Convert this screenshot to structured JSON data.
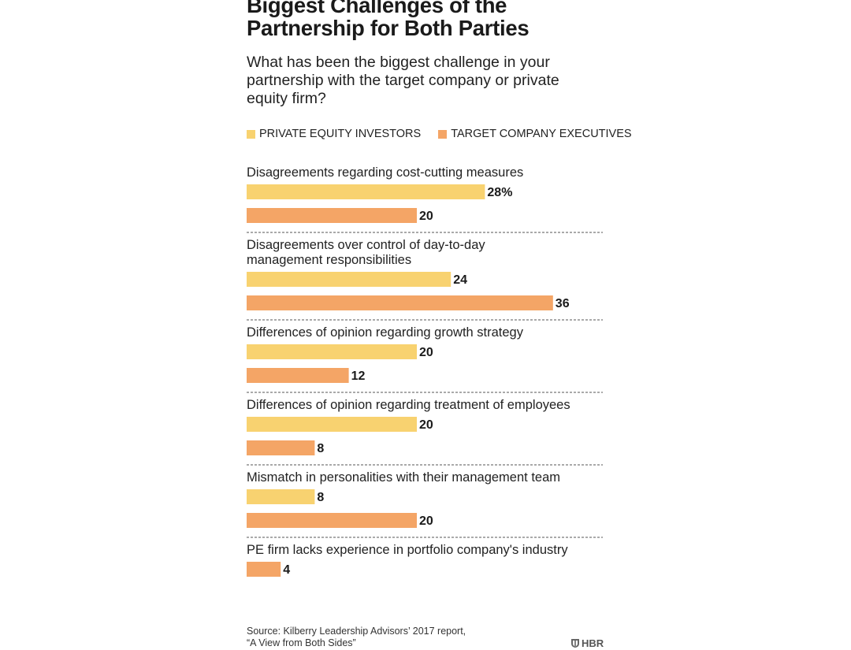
{
  "chart_data": {
    "type": "bar",
    "orientation": "horizontal",
    "title": "Biggest Challenges of the\nPartnership for Both Parties",
    "subtitle": "What has been the biggest challenge in your partnership with the target company or private equity firm?",
    "unit_suffix_first": "%",
    "xlim": [
      0,
      36
    ],
    "series": [
      {
        "name": "PRIVATE EQUITY INVESTORS",
        "color": "#f8d270"
      },
      {
        "name": "TARGET COMPANY EXECUTIVES",
        "color": "#f4a566"
      }
    ],
    "categories": [
      {
        "label": "Disagreements regarding cost-cutting measures",
        "values": [
          28,
          20
        ]
      },
      {
        "label": "Disagreements over control of day-to-day\nmanagement responsibilities",
        "values": [
          24,
          36
        ]
      },
      {
        "label": "Differences of opinion regarding growth strategy",
        "values": [
          20,
          12
        ]
      },
      {
        "label": "Differences of opinion regarding treatment of employees",
        "values": [
          20,
          8
        ]
      },
      {
        "label": "Mismatch in personalities with their management team",
        "values": [
          8,
          20
        ]
      },
      {
        "label": "PE firm lacks experience in portfolio company's industry",
        "values": [
          null,
          4
        ]
      }
    ]
  },
  "source": "Source: Kilberry Leadership Advisors’ 2017 report,\n“A View from Both Sides”",
  "brand": "HBR",
  "colors": {
    "divider": "#555555",
    "text": "#1a1a1a"
  }
}
